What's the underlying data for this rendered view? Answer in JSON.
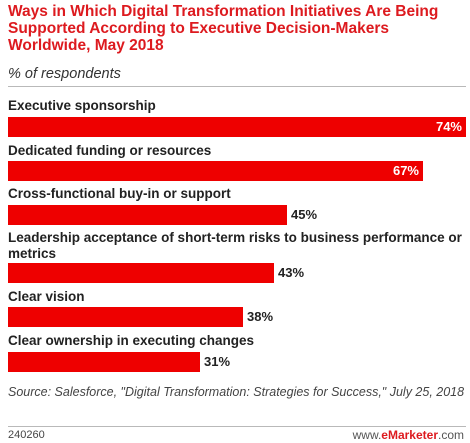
{
  "chart_data": {
    "type": "bar",
    "title": "Ways in Which Digital Transformation Initiatives Are Being Supported According to Executive Decision-Makers Worldwide, May 2018",
    "subtitle": "% of respondents",
    "categories": [
      "Executive sponsorship",
      "Dedicated funding or resources",
      "Cross-functional buy-in or support",
      "Leadership acceptance of short-term risks to business performance or metrics",
      "Clear vision",
      "Clear ownership in executing changes"
    ],
    "values": [
      74,
      67,
      45,
      43,
      38,
      31
    ],
    "value_suffix": "%",
    "xlim": [
      0,
      74
    ],
    "bar_color": "#ee0000",
    "grid": false
  },
  "footer": {
    "source": "Source: Salesforce, \"Digital Transformation: Strategies for Success,\" July 25, 2018",
    "id": "240260",
    "brand_prefix": "www.",
    "brand_name": "eMarketer",
    "brand_suffix": ".com"
  }
}
